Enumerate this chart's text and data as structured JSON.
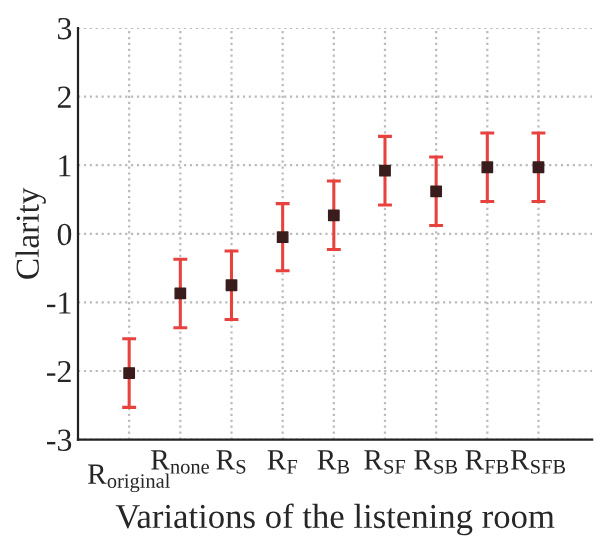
{
  "chart_data": {
    "type": "scatter",
    "xlabel": "Variations of the listening room",
    "ylabel": "Clarity",
    "categories": [
      "R$_{original}$",
      "R$_{none}$",
      "R$_{S}$",
      "R$_{F}$",
      "R$_{B}$",
      "R$_{SF}$",
      "R$_{SB}$",
      "R$_{FB}$",
      "R$_{SFB}$"
    ],
    "series": [
      {
        "color": "#3a1c1c",
        "values": [
          -2.03,
          -0.87,
          -0.75,
          -0.05,
          0.27,
          0.92,
          0.62,
          0.97,
          0.97
        ],
        "errors": [
          0.5,
          0.5,
          0.5,
          0.49,
          0.5,
          0.5,
          0.5,
          0.5,
          0.5
        ]
      }
    ],
    "ylim": [
      -3,
      3
    ],
    "yticks": [
      -3,
      -2,
      -1,
      0,
      1,
      2,
      3
    ],
    "grid": true,
    "marker": "square",
    "legend": false
  }
}
